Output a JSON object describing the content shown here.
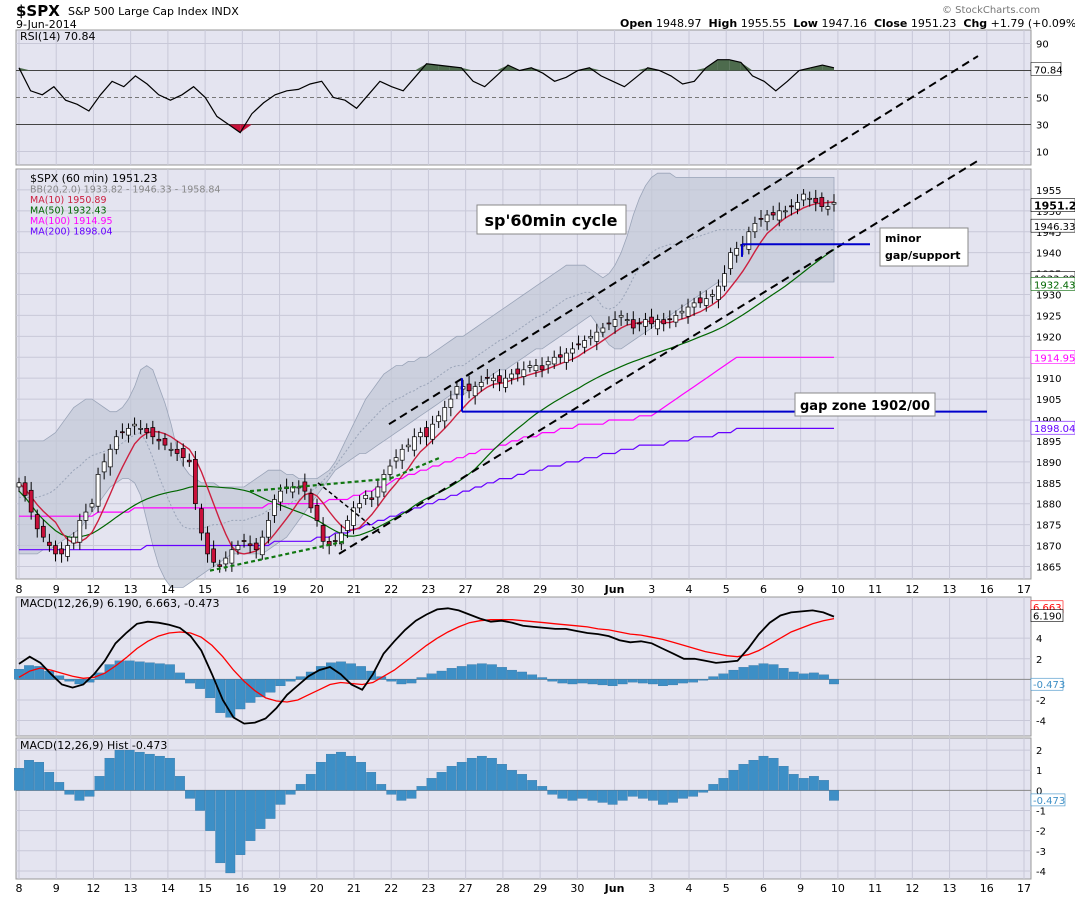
{
  "header": {
    "symbol": "$SPX",
    "name": "S&P 500 Large Cap Index",
    "exchange": "INDX",
    "date": "9-Jun-2014",
    "open_label": "Open",
    "open": "1948.97",
    "high_label": "High",
    "high": "1955.55",
    "low_label": "Low",
    "low": "1947.16",
    "close_label": "Close",
    "close": "1951.23",
    "chg_label": "Chg",
    "chg": "+1.79 (+0.09%)",
    "watermark": "© StockCharts.com"
  },
  "colors": {
    "panel_bg": "#e4e4f0",
    "up_candle": "#ffffff",
    "down_candle": "#c8103a",
    "bb_fill": "#c2c8d6",
    "ma10": "#cc1f3f",
    "ma50": "#006600",
    "ma100": "#ff00ff",
    "ma200": "#6600ff",
    "macd_line": "#000000",
    "signal_line": "#ff0000",
    "hist": "#3d8fc6",
    "annotation_blue": "#0000cc",
    "rsi_fill": "#4d6b4d"
  },
  "chart_data": [
    {
      "type": "line",
      "panel": "rsi",
      "legend": "RSI(14) 70.84",
      "yticks": [
        90,
        70,
        50,
        30,
        10
      ],
      "ylim": [
        0,
        100
      ],
      "last_value": "70.84",
      "series": [
        {
          "name": "RSI(14)",
          "values": [
            72,
            55,
            52,
            58,
            48,
            45,
            40,
            52,
            62,
            58,
            66,
            60,
            52,
            48,
            52,
            58,
            50,
            36,
            30,
            24,
            38,
            46,
            52,
            55,
            56,
            60,
            62,
            50,
            48,
            42,
            52,
            62,
            58,
            55,
            65,
            75,
            74,
            73,
            72,
            62,
            58,
            66,
            74,
            70,
            72,
            68,
            62,
            65,
            70,
            72,
            66,
            62,
            58,
            65,
            72,
            70,
            66,
            60,
            62,
            72,
            78,
            78,
            76,
            66,
            62,
            55,
            62,
            70,
            72,
            74,
            72
          ]
        }
      ]
    },
    {
      "type": "candlestick",
      "panel": "price",
      "title": "$SPX (60 min) 1951.23",
      "ylim": [
        1862,
        1960
      ],
      "yticks": [
        1865,
        1870,
        1875,
        1880,
        1885,
        1890,
        1895,
        1900,
        1905,
        1910,
        1915,
        1920,
        1925,
        1930,
        1935,
        1940,
        1945,
        1950,
        1955
      ],
      "xticks": [
        "8",
        "9",
        "12",
        "13",
        "14",
        "15",
        "16",
        "19",
        "20",
        "21",
        "22",
        "23",
        "27",
        "28",
        "29",
        "30",
        "Jun",
        "3",
        "4",
        "5",
        "6",
        "9",
        "10",
        "11",
        "12",
        "13",
        "16",
        "17"
      ],
      "legend": [
        {
          "name": "$SPX (60 min) 1951.23"
        },
        {
          "name": "BB(20,2.0) 1933.82 - 1946.33 - 1958.84"
        },
        {
          "name": "MA(10) 1950.89"
        },
        {
          "name": "MA(50) 1932.43"
        },
        {
          "name": "MA(100) 1914.95"
        },
        {
          "name": "MA(200) 1898.04"
        }
      ],
      "price_tags": [
        {
          "label": "1951.23",
          "value": 1951.23,
          "style": "bold"
        },
        {
          "label": "1946.33",
          "value": 1946.33,
          "style": "plain"
        },
        {
          "label": "1933.82",
          "value": 1933.82,
          "style": "plain"
        },
        {
          "label": "1932.43",
          "value": 1932.43,
          "style": "plain"
        },
        {
          "label": "1914.95",
          "value": 1914.95,
          "style": "plain"
        },
        {
          "label": "1898.04",
          "value": 1898.04,
          "style": "plain"
        }
      ],
      "closes": [
        1885,
        1882,
        1878,
        1874,
        1872,
        1870,
        1868,
        1868,
        1870,
        1872,
        1876,
        1878,
        1880,
        1887,
        1890,
        1893,
        1896,
        1897,
        1898,
        1899,
        1898,
        1897,
        1896,
        1895,
        1894,
        1893,
        1892,
        1891,
        1890,
        1880,
        1873,
        1868,
        1866,
        1865,
        1867,
        1869,
        1870,
        1871,
        1870,
        1869,
        1872,
        1876,
        1881,
        1883,
        1884,
        1884,
        1884,
        1883,
        1879,
        1876,
        1871,
        1870,
        1871,
        1873,
        1876,
        1879,
        1880,
        1882,
        1881,
        1884,
        1887,
        1889,
        1891,
        1893,
        1894,
        1896,
        1897,
        1896,
        1899,
        1901,
        1903,
        1905,
        1908,
        1908,
        1907,
        1908,
        1909,
        1910,
        1910,
        1909,
        1910,
        1911,
        1911,
        1912,
        1913,
        1913,
        1912,
        1914,
        1915,
        1915,
        1916,
        1917,
        1918,
        1919,
        1920,
        1921,
        1922,
        1923,
        1924,
        1925,
        1924,
        1922,
        1923,
        1924,
        1923,
        1924,
        1923,
        1924,
        1925,
        1926,
        1927,
        1928,
        1928,
        1929,
        1930,
        1932,
        1935,
        1940,
        1941,
        1942,
        1945,
        1947,
        1948,
        1949,
        1949,
        1950,
        1950,
        1951,
        1952,
        1954,
        1953,
        1952,
        1951,
        1951,
        1952
      ],
      "upper_bb": [
        1895,
        1895,
        1895,
        1895,
        1895,
        1896,
        1897,
        1899,
        1901,
        1903,
        1904,
        1905,
        1905,
        1904,
        1903,
        1902,
        1902,
        1903,
        1905,
        1908,
        1912,
        1913,
        1912,
        1908,
        1904,
        1899,
        1893,
        1889,
        1887,
        1886,
        1885,
        1885,
        1885,
        1884,
        1884,
        1884,
        1884,
        1884,
        1885,
        1886,
        1887,
        1888,
        1888,
        1888,
        1887,
        1887,
        1886,
        1886,
        1886,
        1886,
        1887,
        1888,
        1890,
        1893,
        1896,
        1899,
        1902,
        1905,
        1907,
        1909,
        1911,
        1912,
        1913,
        1913,
        1914,
        1914,
        1915,
        1915,
        1916,
        1917,
        1918,
        1919,
        1920,
        1920,
        1921,
        1922,
        1923,
        1924,
        1925,
        1926,
        1927,
        1928,
        1929,
        1930,
        1931,
        1932,
        1933,
        1934,
        1935,
        1936,
        1937,
        1937,
        1937,
        1937,
        1936,
        1935,
        1934,
        1935,
        1937,
        1940,
        1944,
        1949,
        1953,
        1956,
        1958,
        1959,
        1959,
        1959,
        1958,
        1958,
        1958,
        1958,
        1958,
        1958,
        1958,
        1958,
        1958,
        1958,
        1958,
        1958,
        1958,
        1958,
        1958,
        1958,
        1958,
        1958,
        1958,
        1958,
        1958,
        1958,
        1958,
        1958,
        1958,
        1958,
        1958
      ],
      "lower_bb": [
        1868,
        1868,
        1868,
        1868,
        1869,
        1869,
        1870,
        1871,
        1872,
        1873,
        1874,
        1876,
        1878,
        1880,
        1882,
        1884,
        1885,
        1886,
        1886,
        1885,
        1882,
        1876,
        1870,
        1865,
        1862,
        1860,
        1860,
        1860,
        1861,
        1862,
        1863,
        1864,
        1865,
        1866,
        1867,
        1868,
        1868,
        1868,
        1868,
        1868,
        1868,
        1869,
        1870,
        1871,
        1872,
        1874,
        1876,
        1878,
        1880,
        1882,
        1884,
        1886,
        1888,
        1889,
        1890,
        1891,
        1892,
        1892,
        1893,
        1894,
        1895,
        1896,
        1897,
        1898,
        1899,
        1900,
        1901,
        1902,
        1903,
        1904,
        1905,
        1906,
        1906,
        1906,
        1907,
        1908,
        1909,
        1910,
        1911,
        1912,
        1912,
        1913,
        1914,
        1915,
        1916,
        1917,
        1917,
        1918,
        1919,
        1920,
        1921,
        1922,
        1923,
        1924,
        1925,
        1923,
        1920,
        1918,
        1917,
        1917,
        1918,
        1919,
        1920,
        1921,
        1922,
        1923,
        1924,
        1925,
        1926,
        1927,
        1928,
        1929,
        1930,
        1931,
        1932,
        1933,
        1933,
        1933,
        1933,
        1933,
        1933,
        1933,
        1933,
        1933,
        1933,
        1933,
        1933,
        1933,
        1933,
        1933,
        1933,
        1933,
        1933,
        1933,
        1933
      ],
      "ma100": [
        1877,
        1877,
        1877,
        1877,
        1877,
        1877,
        1877,
        1877,
        1877,
        1877,
        1877,
        1877,
        1877,
        1878,
        1878,
        1878,
        1878,
        1878,
        1878,
        1879,
        1879,
        1879,
        1879,
        1879,
        1879,
        1879,
        1879,
        1879,
        1879,
        1879,
        1879,
        1879,
        1879,
        1879,
        1879,
        1879,
        1879,
        1879,
        1879,
        1879,
        1879,
        1880,
        1880,
        1880,
        1880,
        1880,
        1880,
        1880,
        1880,
        1880,
        1880,
        1881,
        1881,
        1881,
        1881,
        1882,
        1882,
        1883,
        1883,
        1884,
        1884,
        1885,
        1886,
        1886,
        1887,
        1887,
        1888,
        1888,
        1889,
        1889,
        1890,
        1890,
        1891,
        1891,
        1892,
        1892,
        1893,
        1893,
        1893,
        1894,
        1894,
        1895,
        1895,
        1896,
        1896,
        1896,
        1897,
        1897,
        1897,
        1898,
        1898,
        1898,
        1899,
        1899,
        1899,
        1899,
        1899,
        1900,
        1900,
        1900,
        1900,
        1900,
        1901,
        1901,
        1901,
        1902,
        1903,
        1904,
        1905,
        1906,
        1907,
        1908,
        1909,
        1910,
        1911,
        1912,
        1913,
        1914,
        1915,
        1915,
        1915,
        1915,
        1915,
        1915,
        1915,
        1915,
        1915,
        1915,
        1915,
        1915,
        1915,
        1915,
        1915,
        1915,
        1915
      ],
      "ma200": [
        1869,
        1869,
        1869,
        1869,
        1869,
        1869,
        1869,
        1869,
        1869,
        1869,
        1869,
        1869,
        1869,
        1869,
        1869,
        1869,
        1869,
        1869,
        1869,
        1869,
        1869,
        1870,
        1870,
        1870,
        1870,
        1870,
        1870,
        1870,
        1870,
        1870,
        1870,
        1870,
        1870,
        1870,
        1870,
        1870,
        1870,
        1870,
        1870,
        1870,
        1870,
        1870,
        1871,
        1871,
        1871,
        1871,
        1871,
        1871,
        1871,
        1872,
        1872,
        1872,
        1873,
        1873,
        1873,
        1874,
        1874,
        1875,
        1875,
        1876,
        1876,
        1877,
        1877,
        1878,
        1878,
        1879,
        1879,
        1880,
        1880,
        1881,
        1881,
        1882,
        1882,
        1883,
        1883,
        1884,
        1884,
        1885,
        1885,
        1886,
        1886,
        1886,
        1887,
        1887,
        1888,
        1888,
        1888,
        1889,
        1889,
        1889,
        1890,
        1890,
        1890,
        1891,
        1891,
        1891,
        1892,
        1892,
        1892,
        1893,
        1893,
        1893,
        1894,
        1894,
        1894,
        1894,
        1894,
        1895,
        1895,
        1895,
        1895,
        1896,
        1896,
        1896,
        1896,
        1897,
        1897,
        1897,
        1898,
        1898,
        1898,
        1898,
        1898,
        1898,
        1898,
        1898,
        1898,
        1898,
        1898,
        1898,
        1898,
        1898,
        1898,
        1898,
        1898
      ]
    },
    {
      "type": "line",
      "panel": "macd",
      "title": "MACD(12,26,9) 6.190, 6.663, -0.473",
      "ylim": [
        -5.5,
        8
      ],
      "yticks": [
        4,
        2,
        -2,
        -4
      ],
      "value_tags": [
        "6.663",
        "6.190",
        "-0.473"
      ],
      "series": [
        {
          "name": "MACD(12,26,9)",
          "values": [
            1.5,
            2.2,
            1.6,
            0.5,
            -0.5,
            -0.8,
            -0.5,
            0.5,
            1.8,
            3.5,
            4.5,
            5.4,
            5.6,
            5.5,
            5.3,
            5.0,
            4.2,
            2.8,
            0.5,
            -2.0,
            -3.7,
            -4.3,
            -4.2,
            -3.8,
            -2.8,
            -1.5,
            -0.6,
            0.3,
            0.9,
            1.2,
            0.5,
            -0.5,
            -1.0,
            0.5,
            2.5,
            3.7,
            4.8,
            5.7,
            6.3,
            6.8,
            6.9,
            6.7,
            6.3,
            5.9,
            5.6,
            5.7,
            5.5,
            5.2,
            5.1,
            5.0,
            4.9,
            4.9,
            4.7,
            4.5,
            4.4,
            4.2,
            3.8,
            3.6,
            3.7,
            3.5,
            3.0,
            2.5,
            2.0,
            2.0,
            1.8,
            1.6,
            1.7,
            1.8,
            3.0,
            4.4,
            5.5,
            6.2,
            6.5,
            6.6,
            6.7,
            6.5,
            6.1
          ]
        },
        {
          "name": "Signal",
          "values": [
            0.2,
            0.8,
            1.1,
            0.9,
            0.6,
            0.3,
            0.1,
            0.2,
            0.6,
            1.3,
            2.1,
            3.0,
            3.7,
            4.2,
            4.5,
            4.6,
            4.5,
            4.1,
            3.3,
            2.2,
            0.9,
            -0.2,
            -1.1,
            -1.8,
            -2.1,
            -2.2,
            -2.0,
            -1.5,
            -1.0,
            -0.5,
            -0.3,
            -0.4,
            -0.5,
            -0.3,
            0.3,
            0.9,
            1.7,
            2.5,
            3.3,
            4.0,
            4.6,
            5.1,
            5.5,
            5.7,
            5.8,
            5.8,
            5.8,
            5.7,
            5.6,
            5.5,
            5.4,
            5.3,
            5.2,
            5.1,
            4.9,
            4.8,
            4.6,
            4.4,
            4.3,
            4.1,
            3.9,
            3.6,
            3.3,
            3.0,
            2.7,
            2.5,
            2.3,
            2.2,
            2.4,
            2.8,
            3.4,
            4.0,
            4.6,
            5.0,
            5.4,
            5.7,
            5.9
          ]
        }
      ]
    },
    {
      "type": "bar",
      "panel": "hist",
      "title": "MACD(12,26,9) Hist -0.473",
      "ylim": [
        -4.4,
        2.6
      ],
      "yticks": [
        2,
        1,
        0,
        -1,
        -2,
        -3,
        -4
      ],
      "last_value": "-0.473",
      "values": [
        1.1,
        1.5,
        1.4,
        0.9,
        0.4,
        -0.2,
        -0.5,
        -0.3,
        0.7,
        1.6,
        2.0,
        2.0,
        1.9,
        1.8,
        1.7,
        1.6,
        0.7,
        -0.4,
        -1.0,
        -2.0,
        -3.6,
        -4.1,
        -3.2,
        -2.5,
        -1.9,
        -1.4,
        -0.7,
        -0.2,
        0.3,
        0.8,
        1.4,
        1.8,
        1.9,
        1.7,
        1.4,
        0.9,
        0.3,
        -0.2,
        -0.5,
        -0.4,
        0.2,
        0.6,
        0.9,
        1.2,
        1.4,
        1.6,
        1.7,
        1.6,
        1.3,
        1.0,
        0.8,
        0.5,
        0.2,
        -0.2,
        -0.4,
        -0.5,
        -0.4,
        -0.5,
        -0.6,
        -0.7,
        -0.5,
        -0.3,
        -0.4,
        -0.5,
        -0.7,
        -0.6,
        -0.4,
        -0.3,
        -0.1,
        0.3,
        0.6,
        1.0,
        1.3,
        1.5,
        1.7,
        1.6,
        1.2,
        0.8,
        0.6,
        0.7,
        0.5,
        -0.5
      ]
    }
  ],
  "xaxis": {
    "ticks": [
      "8",
      "9",
      "12",
      "13",
      "14",
      "15",
      "16",
      "19",
      "20",
      "21",
      "22",
      "23",
      "27",
      "28",
      "29",
      "30",
      "Jun",
      "3",
      "4",
      "5",
      "6",
      "9",
      "10",
      "11",
      "12",
      "13",
      "16",
      "17"
    ]
  },
  "annotations": {
    "cycle_label": "sp'60min cycle",
    "gap_zone_label": "gap zone 1902/00",
    "minor_label_line1": "minor",
    "minor_label_line2": "gap/support"
  }
}
